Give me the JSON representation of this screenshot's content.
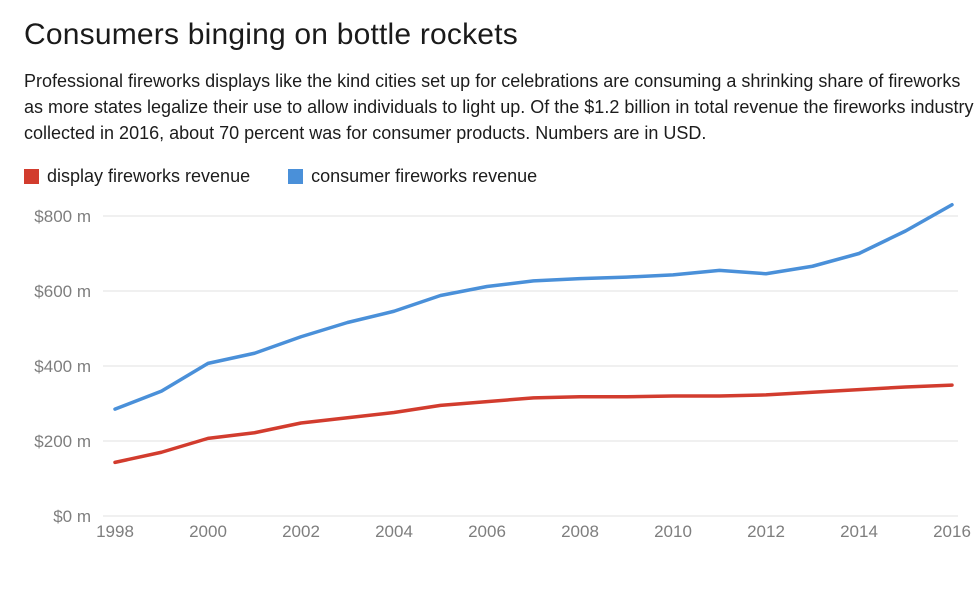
{
  "title": "Consumers binging on bottle rockets",
  "description": "Professional fireworks displays like the kind cities set up for celebrations are consuming a shrinking share of fireworks as more states legalize their use to allow individuals to light up. Of the $1.2 billion in total revenue the fireworks industry collected in 2016, about 70 percent was for consumer products. Numbers are in USD.",
  "legend": {
    "items": [
      {
        "label": "display fireworks revenue",
        "color": "#d23c2e"
      },
      {
        "label": "consumer fireworks revenue",
        "color": "#4a90d9"
      }
    ]
  },
  "chart_data": {
    "type": "line",
    "title": "Consumers binging on bottle rockets",
    "xlabel": "",
    "ylabel": "",
    "x": [
      1998,
      1999,
      2000,
      2001,
      2002,
      2003,
      2004,
      2005,
      2006,
      2007,
      2008,
      2009,
      2010,
      2011,
      2012,
      2013,
      2014,
      2015,
      2016
    ],
    "series": [
      {
        "name": "display fireworks revenue",
        "color": "#d23c2e",
        "values": [
          143,
          170,
          207,
          222,
          248,
          262,
          276,
          295,
          305,
          315,
          318,
          318,
          320,
          320,
          323,
          330,
          337,
          344,
          349
        ]
      },
      {
        "name": "consumer fireworks revenue",
        "color": "#4a90d9",
        "values": [
          285,
          333,
          407,
          434,
          478,
          516,
          546,
          588,
          612,
          627,
          633,
          637,
          643,
          655,
          646,
          666,
          700,
          760,
          830
        ]
      }
    ],
    "ylim": [
      0,
      872
    ],
    "grid": true,
    "legend_position": "top",
    "units": "USD millions",
    "y_ticks": [
      {
        "value": 0,
        "label": "$0 m"
      },
      {
        "value": 200,
        "label": "$200 m"
      },
      {
        "value": 400,
        "label": "$400 m"
      },
      {
        "value": 600,
        "label": "$600 m"
      },
      {
        "value": 800,
        "label": "$800 m"
      }
    ],
    "x_ticks": [
      {
        "value": 1998,
        "label": "1998"
      },
      {
        "value": 2000,
        "label": "2000"
      },
      {
        "value": 2002,
        "label": "2002"
      },
      {
        "value": 2004,
        "label": "2004"
      },
      {
        "value": 2006,
        "label": "2006"
      },
      {
        "value": 2008,
        "label": "2008"
      },
      {
        "value": 2010,
        "label": "2010"
      },
      {
        "value": 2012,
        "label": "2012"
      },
      {
        "value": 2014,
        "label": "2014"
      },
      {
        "value": 2016,
        "label": "2016"
      }
    ],
    "colors": {
      "grid": "#e2e2e2",
      "axis_text": "#7e7e7e"
    }
  }
}
